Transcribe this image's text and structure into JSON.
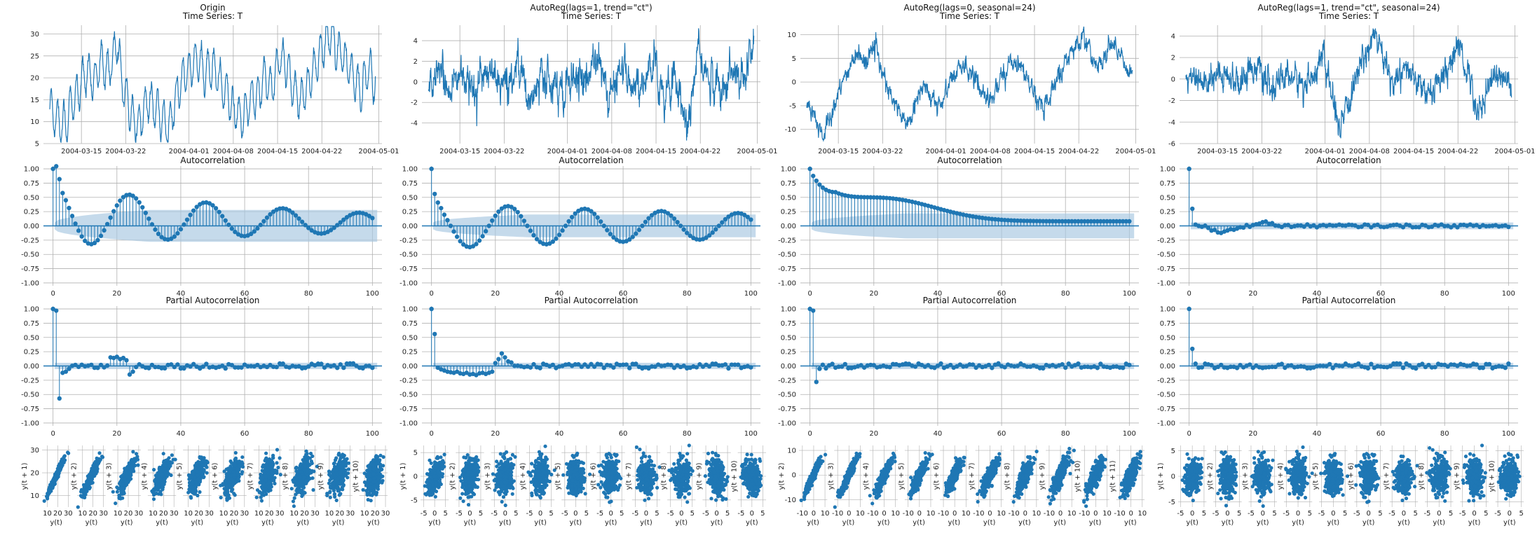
{
  "figure": {
    "background": "#ffffff",
    "series_color": "#1f77b4",
    "band_color": "#a6c6e0",
    "grid_color": "#b0b0b0"
  },
  "chart_data": [
    {
      "id": "ts-origin",
      "type": "line",
      "column": 0,
      "title_lines": [
        "Origin",
        "Time Series: T"
      ],
      "x_ticks": [
        "2004-03-15",
        "2004-03-22",
        "2004-04-01",
        "2004-04-08",
        "2004-04-15",
        "2004-04-22",
        "2004-05-01"
      ],
      "x_tick_day_offsets": [
        5,
        12,
        22,
        29,
        36,
        43,
        52
      ],
      "x_range_days": [
        -1,
        52.5
      ],
      "ylim": [
        5,
        32
      ],
      "y_ticks": [
        5,
        10,
        15,
        20,
        25,
        30
      ],
      "series_model": {
        "mean": 16.5,
        "daily_amp": 4.5,
        "trend_amp": 5,
        "noise": 1.4,
        "n": 1250
      },
      "values": [
        13,
        11,
        9,
        14,
        17,
        22,
        19,
        24,
        21,
        28,
        18,
        12,
        9,
        15,
        14,
        11,
        8,
        15,
        20,
        22,
        24,
        21,
        23,
        19,
        16,
        12,
        10,
        14,
        16,
        20,
        18,
        25,
        22,
        17,
        15,
        19,
        23,
        27,
        31,
        26,
        24,
        20,
        17,
        22,
        18
      ]
    },
    {
      "id": "ts-ar1ct",
      "type": "line",
      "column": 1,
      "title_lines": [
        "AutoReg(lags=1, trend=\"ct\")",
        "Time Series: T"
      ],
      "x_ticks": [
        "2004-03-15",
        "2004-03-22",
        "2004-04-01",
        "2004-04-08",
        "2004-04-15",
        "2004-04-22",
        "2004-05-01"
      ],
      "x_tick_day_offsets": [
        5,
        12,
        22,
        29,
        36,
        43,
        52
      ],
      "x_range_days": [
        -1,
        52.5
      ],
      "ylim": [
        -6,
        5.5
      ],
      "y_ticks": [
        -4,
        -2,
        0,
        2,
        4
      ],
      "series_model": {
        "mean": 0,
        "daily_amp": 0.6,
        "trend_amp": 0,
        "noise": 1.0,
        "n": 1250
      },
      "values": [
        0,
        0.5,
        -0.4,
        1.2,
        -1.1,
        0.8,
        0.3,
        -0.6,
        2.1,
        -2.4,
        1.5,
        0.2,
        -0.8,
        0.9,
        -0.3,
        3.2,
        -1.7,
        0.6,
        0.1,
        -0.5,
        1.9,
        -1.3,
        0.7,
        -4.8,
        2.6,
        0.4,
        -0.9,
        1.1,
        -0.2,
        4.1
      ]
    },
    {
      "id": "ts-ar0s24",
      "type": "line",
      "column": 2,
      "title_lines": [
        "AutoReg(lags=0, seasonal=24)",
        "Time Series: T"
      ],
      "x_ticks": [
        "2004-03-15",
        "2004-03-22",
        "2004-04-01",
        "2004-04-08",
        "2004-04-15",
        "2004-04-22",
        "2004-05-01"
      ],
      "x_tick_day_offsets": [
        5,
        12,
        22,
        29,
        36,
        43,
        52
      ],
      "x_range_days": [
        -1,
        52.5
      ],
      "ylim": [
        -13,
        12
      ],
      "y_ticks": [
        -10,
        -5,
        0,
        5,
        10
      ],
      "series_model": {
        "mean": 0,
        "daily_amp": 0.5,
        "trend_amp": 4.5,
        "noise": 1.2,
        "n": 1250
      },
      "values": [
        -5,
        -8,
        -11,
        -6,
        -2,
        3,
        6,
        4,
        8,
        2,
        -3,
        -6,
        -9,
        -4,
        -1,
        -3,
        -5,
        0,
        2,
        4,
        1,
        -2,
        -4,
        0,
        3,
        5,
        2,
        -1,
        -6,
        -3,
        1,
        4,
        7,
        10,
        6,
        3,
        7,
        8,
        4,
        2
      ]
    },
    {
      "id": "ts-ar1ct-s24",
      "type": "line",
      "column": 3,
      "title_lines": [
        "AutoReg(lags=1, trend=\"ct\", seasonal=24)",
        "Time Series: T"
      ],
      "x_ticks": [
        "2004-03-15",
        "2004-03-22",
        "2004-04-01",
        "2004-04-08",
        "2004-04-15",
        "2004-04-22",
        "2004-05-01"
      ],
      "x_tick_day_offsets": [
        5,
        12,
        22,
        29,
        36,
        43,
        52
      ],
      "x_range_days": [
        -1,
        52.5
      ],
      "ylim": [
        -6,
        5
      ],
      "y_ticks": [
        -6,
        -4,
        -2,
        0,
        2,
        4
      ],
      "series_model": {
        "mean": 0,
        "daily_amp": 0.1,
        "trend_amp": 0,
        "noise": 0.8,
        "n": 1250
      },
      "values": [
        0.3,
        -0.5,
        0.9,
        -0.2,
        1.3,
        -1.0,
        0.4,
        -0.7,
        2.2,
        -5.2,
        0.6,
        4.3,
        -0.3,
        0.8,
        -1.6,
        0.2,
        3.1,
        -2.9,
        0.5,
        -0.4
      ]
    },
    {
      "id": "acf-origin",
      "type": "stem",
      "column": 0,
      "row": 1,
      "title": "Autocorrelation",
      "xlim": [
        -3,
        103
      ],
      "x_ticks": [
        0,
        20,
        40,
        60,
        80,
        100
      ],
      "ylim": [
        -1.05,
        1.05
      ],
      "y_ticks": [
        "1.00",
        "0.75",
        "0.50",
        "0.25",
        "0.00",
        "-0.25",
        "-0.50",
        "-0.75",
        "-1.00"
      ],
      "model": {
        "kind": "acf",
        "lag1": 0.97,
        "decay": 0.012,
        "cos_amp": 0.55,
        "period": 24,
        "trend": 0.18
      },
      "band_end": 0.28
    },
    {
      "id": "acf-ar1ct",
      "type": "stem",
      "column": 1,
      "row": 1,
      "title": "Autocorrelation",
      "xlim": [
        -3,
        103
      ],
      "x_ticks": [
        0,
        20,
        40,
        60,
        80,
        100
      ],
      "ylim": [
        -1.05,
        1.05
      ],
      "y_ticks": [
        "1.00",
        "0.75",
        "0.50",
        "0.25",
        "0.00",
        "-0.25",
        "-0.50",
        "-0.75",
        "-1.00"
      ],
      "model": {
        "kind": "acf",
        "lag1": 0.56,
        "decay": 0.006,
        "cos_amp": 0.4,
        "period": 24,
        "trend": 0.0
      },
      "band_end": 0.2
    },
    {
      "id": "acf-ar0s24",
      "type": "stem",
      "column": 2,
      "row": 1,
      "title": "Autocorrelation",
      "xlim": [
        -3,
        103
      ],
      "x_ticks": [
        0,
        20,
        40,
        60,
        80,
        100
      ],
      "ylim": [
        -1.05,
        1.05
      ],
      "y_ticks": [
        "1.00",
        "0.75",
        "0.50",
        "0.25",
        "0.00",
        "-0.25",
        "-0.50",
        "-0.75",
        "-1.00"
      ],
      "model": {
        "kind": "acf_decay",
        "lag1": 0.97
      },
      "band_end": 0.22
    },
    {
      "id": "acf-ar1ct-s24",
      "type": "stem",
      "column": 3,
      "row": 1,
      "title": "Autocorrelation",
      "xlim": [
        -3,
        103
      ],
      "x_ticks": [
        0,
        20,
        40,
        60,
        80,
        100
      ],
      "ylim": [
        -1.05,
        1.05
      ],
      "y_ticks": [
        "1.00",
        "0.75",
        "0.50",
        "0.25",
        "0.00",
        "-0.25",
        "-0.50",
        "-0.75",
        "-1.00"
      ],
      "model": {
        "kind": "acf_small",
        "lag1": 0.3
      },
      "band_end": 0.06
    },
    {
      "id": "pacf-origin",
      "type": "stem",
      "column": 0,
      "row": 2,
      "title": "Partial Autocorrelation",
      "xlim": [
        -3,
        103
      ],
      "x_ticks": [
        0,
        20,
        40,
        60,
        80,
        100
      ],
      "ylim": [
        -1.05,
        1.05
      ],
      "y_ticks": [
        "1.00",
        "0.75",
        "0.50",
        "0.25",
        "0.00",
        "-0.25",
        "-0.50",
        "-0.75",
        "-1.00"
      ],
      "model": {
        "kind": "pacf",
        "lags": {
          "0": 1.0,
          "1": 0.97,
          "2": -0.57,
          "3": -0.12,
          "4": -0.1,
          "5": -0.05,
          "18": 0.15,
          "19": 0.14,
          "20": 0.16,
          "21": 0.12,
          "22": 0.14,
          "23": 0.1,
          "24": -0.15,
          "25": -0.1
        }
      },
      "band_end": 0.055
    },
    {
      "id": "pacf-ar1ct",
      "type": "stem",
      "column": 1,
      "row": 2,
      "title": "Partial Autocorrelation",
      "xlim": [
        -3,
        103
      ],
      "x_ticks": [
        0,
        20,
        40,
        60,
        80,
        100
      ],
      "ylim": [
        -1.05,
        1.05
      ],
      "y_ticks": [
        "1.00",
        "0.75",
        "0.50",
        "0.25",
        "0.00",
        "-0.25",
        "-0.50",
        "-0.75",
        "-1.00"
      ],
      "model": {
        "kind": "pacf",
        "lags": {
          "0": 1.0,
          "1": 0.56,
          "2": -0.03,
          "3": -0.06,
          "4": -0.08,
          "5": -0.1,
          "6": -0.11,
          "7": -0.12,
          "8": -0.1,
          "9": -0.13,
          "10": -0.14,
          "11": -0.12,
          "12": -0.15,
          "13": -0.14,
          "14": -0.16,
          "15": -0.13,
          "16": -0.12,
          "17": -0.14,
          "18": -0.12,
          "19": -0.1,
          "20": 0.05,
          "21": 0.12,
          "22": 0.22,
          "23": 0.15,
          "24": 0.08,
          "25": 0.06
        }
      },
      "band_end": 0.055
    },
    {
      "id": "pacf-ar0s24",
      "type": "stem",
      "column": 2,
      "row": 2,
      "title": "Partial Autocorrelation",
      "xlim": [
        -3,
        103
      ],
      "x_ticks": [
        0,
        20,
        40,
        60,
        80,
        100
      ],
      "ylim": [
        -1.05,
        1.05
      ],
      "y_ticks": [
        "1.00",
        "0.75",
        "0.50",
        "0.25",
        "0.00",
        "-0.25",
        "-0.50",
        "-0.75",
        "-1.00"
      ],
      "model": {
        "kind": "pacf",
        "lags": {
          "0": 1.0,
          "1": 0.97,
          "2": -0.28,
          "3": -0.05,
          "4": 0.02
        }
      },
      "band_end": 0.055
    },
    {
      "id": "pacf-ar1ct-s24",
      "type": "stem",
      "column": 3,
      "row": 2,
      "title": "Partial Autocorrelation",
      "xlim": [
        -3,
        103
      ],
      "x_ticks": [
        0,
        20,
        40,
        60,
        80,
        100
      ],
      "ylim": [
        -1.05,
        1.05
      ],
      "y_ticks": [
        "1.00",
        "0.75",
        "0.50",
        "0.25",
        "0.00",
        "-0.25",
        "-0.50",
        "-0.75",
        "-1.00"
      ],
      "model": {
        "kind": "pacf",
        "lags": {
          "0": 1.0,
          "1": 0.3,
          "2": 0.04,
          "3": -0.03
        }
      },
      "band_end": 0.055
    },
    {
      "id": "lag-origin",
      "type": "scatter",
      "column": 0,
      "row": 3,
      "x_label": "y(t)",
      "y_labels": [
        "y(t + 1)",
        "y(t + 2)",
        "y(t + 3)",
        "y(t + 4)",
        "y(t + 5)",
        "y(t + 6)",
        "y(t + 7)",
        "y(t + 8)",
        "y(t + 9)",
        "y(t + 10)"
      ],
      "x_ticks": [
        10,
        20,
        30
      ],
      "y_ticks": [
        10,
        20,
        30
      ],
      "lim": [
        5,
        32
      ],
      "correlations": [
        0.97,
        0.92,
        0.85,
        0.77,
        0.68,
        0.6,
        0.52,
        0.45,
        0.4,
        0.36
      ]
    },
    {
      "id": "lag-ar1ct",
      "type": "scatter",
      "column": 1,
      "row": 3,
      "x_label": "y(t)",
      "y_labels": [
        "y(t + 1)",
        "y(t + 2)",
        "y(t + 3)",
        "y(t + 4)",
        "y(t + 5)",
        "y(t + 6)",
        "y(t + 7)",
        "y(t + 8)",
        "y(t + 9)",
        "y(t + 10)"
      ],
      "x_ticks": [
        -5,
        0,
        5
      ],
      "y_ticks": [
        -5,
        0,
        5
      ],
      "lim": [
        -6.5,
        6.5
      ],
      "correlations": [
        0.56,
        0.35,
        0.2,
        0.1,
        0.04,
        0.0,
        -0.05,
        -0.1,
        -0.15,
        -0.2
      ]
    },
    {
      "id": "lag-ar0s24",
      "type": "scatter",
      "column": 2,
      "row": 3,
      "x_label": "y(t)",
      "y_labels": [
        "y(t + 2)",
        "y(t + 3)",
        "y(t + 4)",
        "y(t + 5)",
        "y(t + 6)",
        "y(t + 7)",
        "y(t + 8)",
        "y(t + 9)",
        "y(t + 10)",
        "y(t + 11)"
      ],
      "x_ticks": [
        -10,
        0,
        10
      ],
      "y_ticks": [
        -10,
        0,
        10
      ],
      "lim": [
        -13,
        12
      ],
      "correlations": [
        0.95,
        0.93,
        0.91,
        0.89,
        0.87,
        0.85,
        0.83,
        0.81,
        0.8,
        0.78
      ]
    },
    {
      "id": "lag-ar1ct-s24",
      "type": "scatter",
      "column": 3,
      "row": 3,
      "x_label": "y(t)",
      "y_labels": [
        "y(t + 1)",
        "y(t + 2)",
        "y(t + 3)",
        "y(t + 4)",
        "y(t + 5)",
        "y(t + 6)",
        "y(t + 7)",
        "y(t + 8)",
        "y(t + 9)",
        "y(t + 10)"
      ],
      "x_ticks": [
        -5,
        0,
        5
      ],
      "y_ticks": [
        -5,
        0,
        5
      ],
      "lim": [
        -6,
        6
      ],
      "correlations": [
        0.3,
        0.08,
        0.03,
        0.0,
        -0.02,
        0.01,
        0.0,
        -0.01,
        0.02,
        0.0
      ]
    }
  ]
}
